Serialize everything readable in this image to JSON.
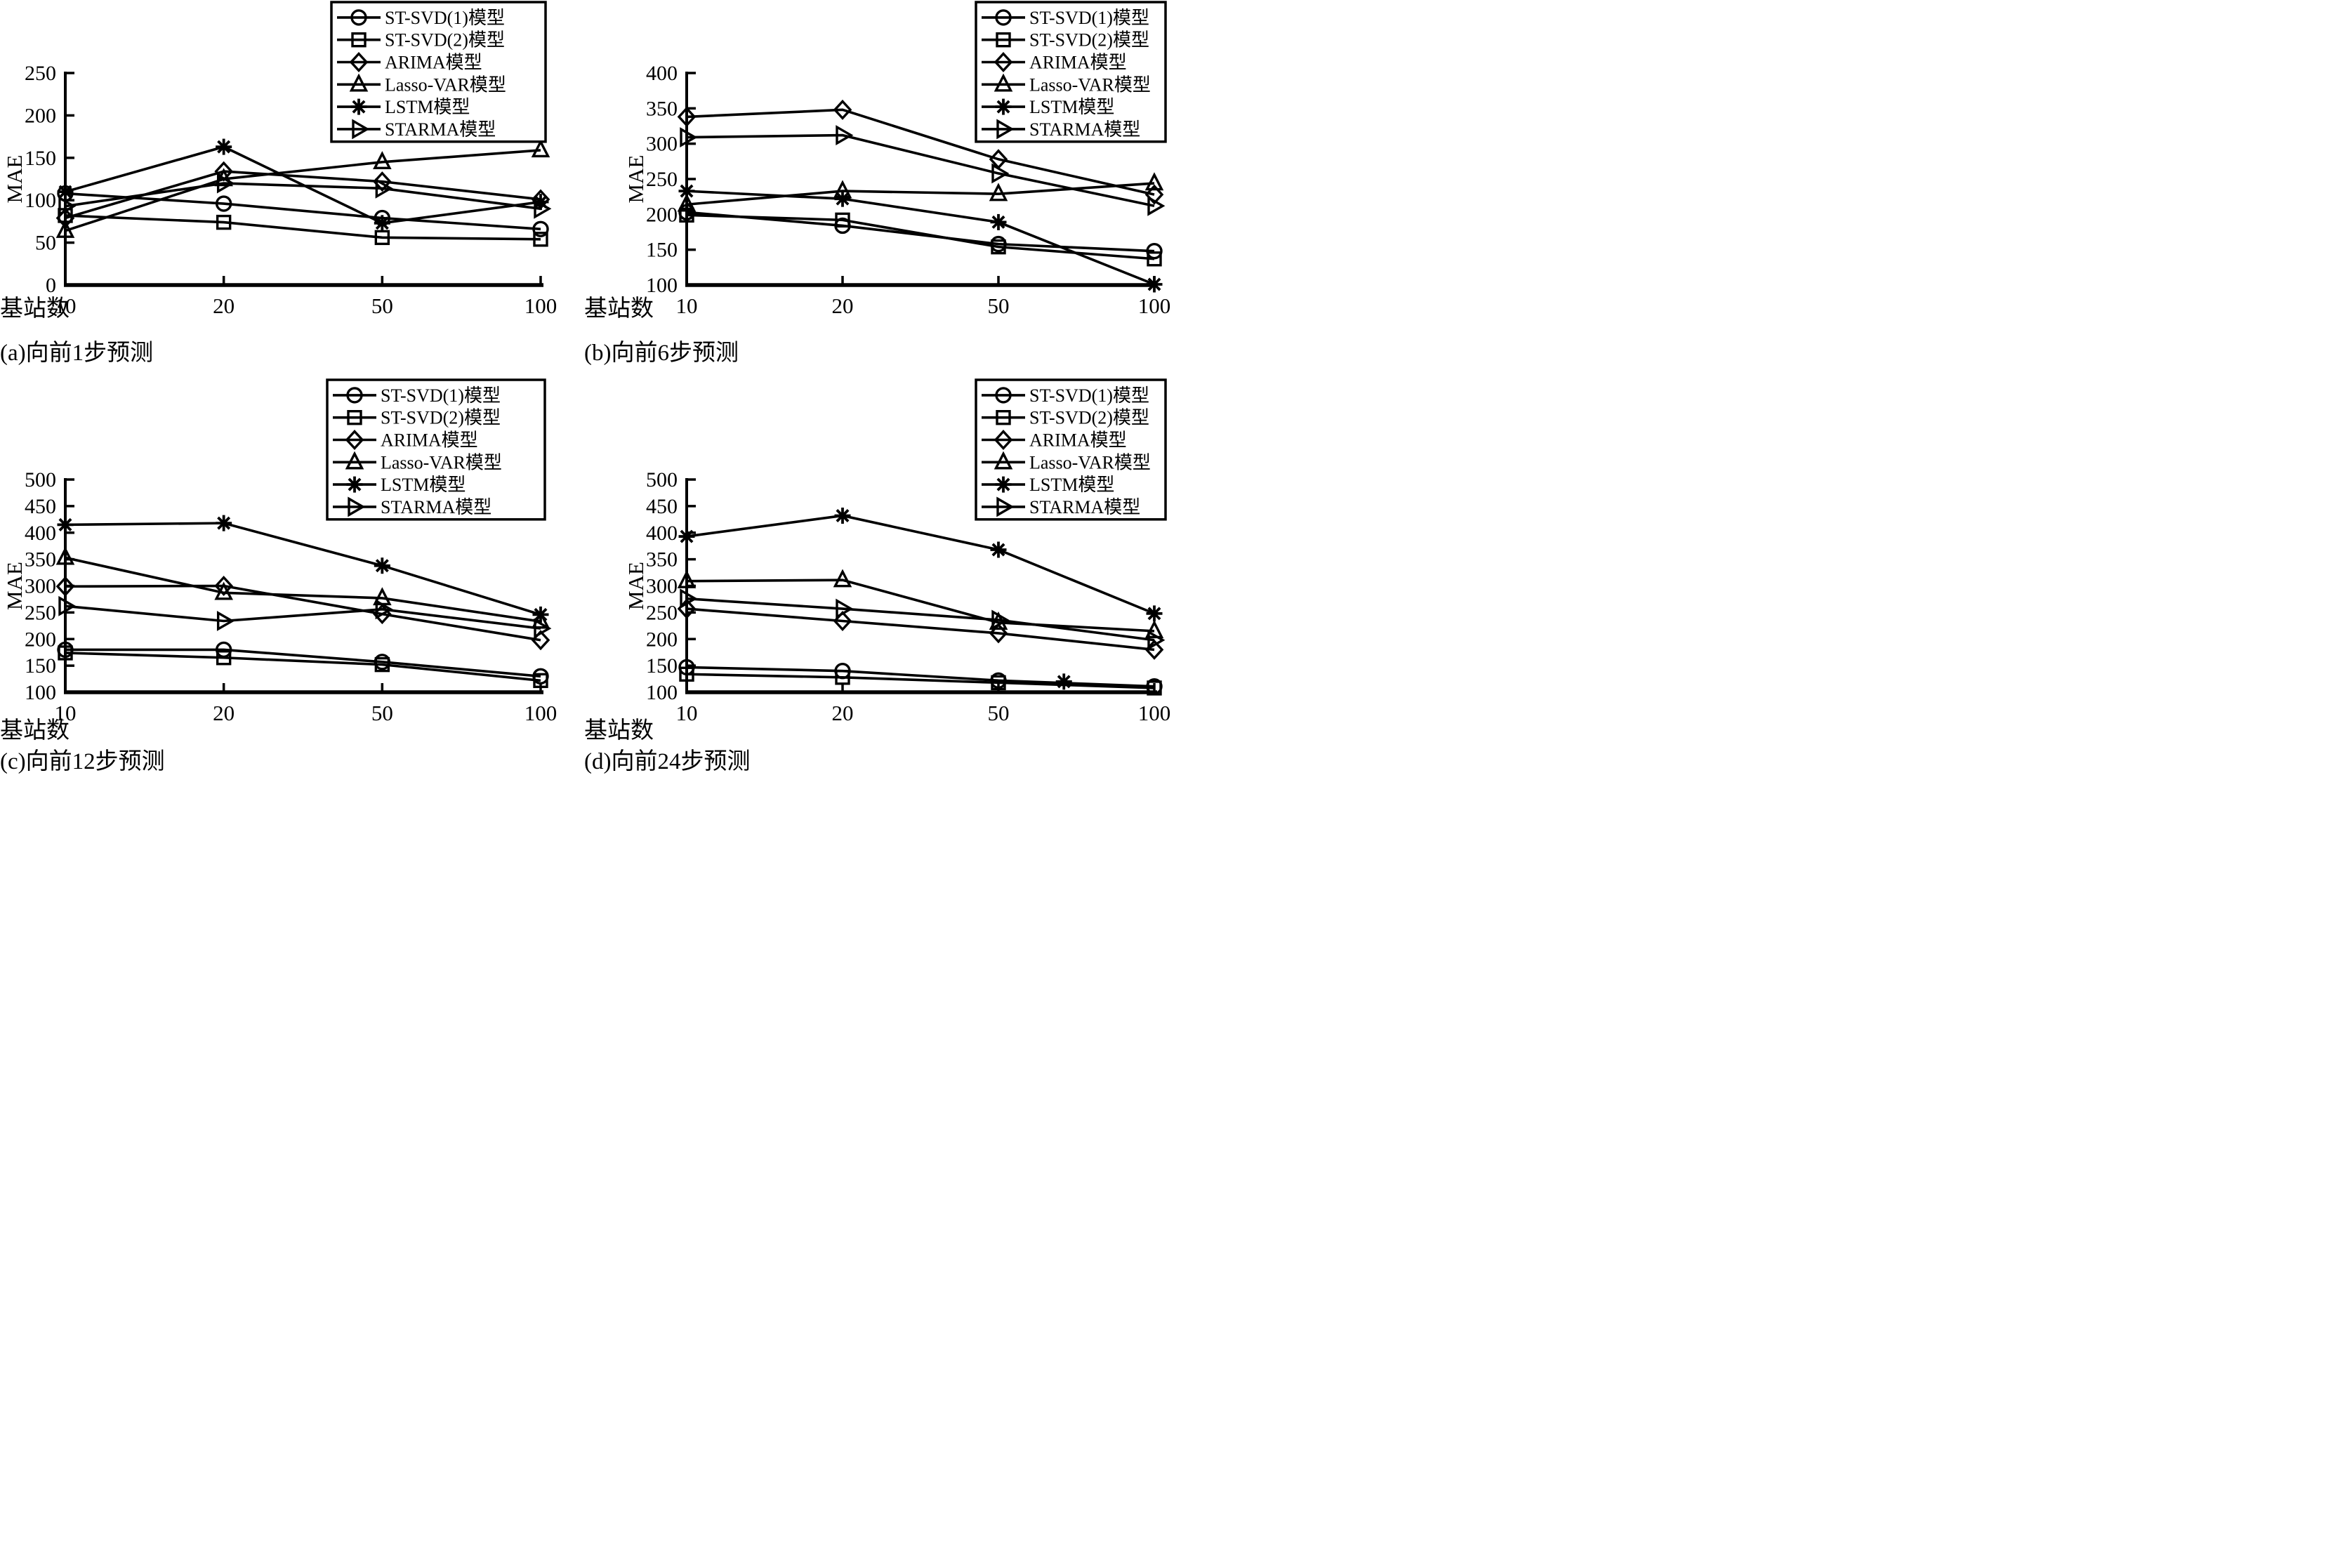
{
  "figure": {
    "background_color": "#ffffff",
    "line_color": "#000000",
    "xlabel": "基站数",
    "ylabel": "MAE",
    "x_tick_labels": [
      "10",
      "20",
      "50",
      "100"
    ],
    "legend_entries": [
      {
        "label": "ST-SVD(1)模型",
        "marker": "circle-marker"
      },
      {
        "label": "ST-SVD(2)模型",
        "marker": "square-marker"
      },
      {
        "label": "ARIMA模型",
        "marker": "diamond-marker"
      },
      {
        "label": "Lasso-VAR模型",
        "marker": "triangle-up-marker"
      },
      {
        "label": "LSTM模型",
        "marker": "asterisk-marker"
      },
      {
        "label": "STARMA模型",
        "marker": "triangle-right-marker"
      }
    ]
  },
  "chart_data": [
    {
      "type": "line",
      "title": "(a)向前1步预测",
      "xlabel": "基站数",
      "ylabel": "MAE",
      "x": [
        10,
        20,
        50,
        100
      ],
      "x_scale": "categorical-equal-spacing",
      "ylim": [
        0,
        250
      ],
      "yticks": [
        0,
        50,
        100,
        150,
        200,
        250
      ],
      "grid": false,
      "legend_position": "top-right",
      "series": [
        {
          "name": "ST-SVD(1)模型",
          "marker": "circle",
          "values": [
            108,
            96,
            79,
            66
          ]
        },
        {
          "name": "ST-SVD(2)模型",
          "marker": "square",
          "values": [
            82,
            74,
            56,
            54
          ]
        },
        {
          "name": "ARIMA模型",
          "marker": "diamond",
          "values": [
            79,
            134,
            122,
            101
          ]
        },
        {
          "name": "Lasso-VAR模型",
          "marker": "triangle-up",
          "values": [
            64,
            125,
            145,
            159
          ]
        },
        {
          "name": "LSTM模型",
          "marker": "asterisk",
          "values": [
            110,
            163,
            73,
            98
          ]
        },
        {
          "name": "STARMA模型",
          "marker": "triangle-right",
          "values": [
            93,
            120,
            114,
            90
          ]
        }
      ]
    },
    {
      "type": "line",
      "title": "(b)向前6步预测",
      "xlabel": "基站数",
      "ylabel": "MAE",
      "x": [
        10,
        20,
        50,
        100
      ],
      "x_scale": "categorical-equal-spacing",
      "ylim": [
        100,
        400
      ],
      "yticks": [
        100,
        150,
        200,
        250,
        300,
        350,
        400
      ],
      "grid": false,
      "legend_position": "top-right",
      "series": [
        {
          "name": "ST-SVD(1)模型",
          "marker": "circle",
          "values": [
            203,
            184,
            158,
            148
          ]
        },
        {
          "name": "ST-SVD(2)模型",
          "marker": "square",
          "values": [
            199,
            192,
            154,
            137
          ]
        },
        {
          "name": "ARIMA模型",
          "marker": "diamond",
          "values": [
            338,
            348,
            278,
            228
          ]
        },
        {
          "name": "Lasso-VAR模型",
          "marker": "triangle-up",
          "values": [
            214,
            233,
            229,
            244
          ]
        },
        {
          "name": "LSTM模型",
          "marker": "asterisk",
          "values": [
            233,
            222,
            189,
            101
          ]
        },
        {
          "name": "STARMA模型",
          "marker": "triangle-right",
          "values": [
            309,
            312,
            258,
            212
          ]
        }
      ]
    },
    {
      "type": "line",
      "title": "(c)向前12步预测",
      "xlabel": "基站数",
      "ylabel": "MAE",
      "x": [
        10,
        20,
        50,
        100
      ],
      "x_scale": "categorical-equal-spacing",
      "ylim": [
        100,
        500
      ],
      "yticks": [
        100,
        150,
        200,
        250,
        300,
        350,
        400,
        450,
        500
      ],
      "grid": false,
      "legend_position": "top-right",
      "series": [
        {
          "name": "ST-SVD(1)模型",
          "marker": "circle",
          "values": [
            180,
            180,
            157,
            130
          ]
        },
        {
          "name": "ST-SVD(2)模型",
          "marker": "square",
          "values": [
            174,
            165,
            152,
            122
          ]
        },
        {
          "name": "ARIMA模型",
          "marker": "diamond",
          "values": [
            299,
            300,
            247,
            198
          ]
        },
        {
          "name": "Lasso-VAR模型",
          "marker": "triangle-up",
          "values": [
            353,
            287,
            277,
            233
          ]
        },
        {
          "name": "LSTM模型",
          "marker": "asterisk",
          "values": [
            415,
            418,
            338,
            246
          ]
        },
        {
          "name": "STARMA模型",
          "marker": "triangle-right",
          "values": [
            262,
            234,
            256,
            220
          ]
        }
      ]
    },
    {
      "type": "line",
      "title": "(d)向前24步预测",
      "xlabel": "基站数",
      "ylabel": "MAE",
      "x": [
        10,
        20,
        50,
        100
      ],
      "x_scale": "categorical-equal-spacing",
      "ylim": [
        100,
        500
      ],
      "yticks": [
        100,
        150,
        200,
        250,
        300,
        350,
        400,
        450,
        500
      ],
      "grid": false,
      "legend_position": "top-right",
      "series": [
        {
          "name": "ST-SVD(1)模型",
          "marker": "circle",
          "values": [
            147,
            140,
            122,
            111
          ]
        },
        {
          "name": "ST-SVD(2)模型",
          "marker": "square",
          "values": [
            134,
            128,
            118,
            108
          ]
        },
        {
          "name": "ARIMA模型",
          "marker": "diamond",
          "values": [
            257,
            234,
            211,
            180
          ]
        },
        {
          "name": "Lasso-VAR模型",
          "marker": "triangle-up",
          "values": [
            309,
            311,
            231,
            215
          ]
        },
        {
          "name": "LSTM模型",
          "marker": "asterisk",
          "values": [
            393,
            432,
            368,
            248
          ]
        },
        {
          "name": "STARMA模型",
          "marker": "triangle-right",
          "values": [
            276,
            257,
            236,
            198
          ]
        }
      ],
      "stray_markers": [
        {
          "marker": "asterisk",
          "x_index": 2.42,
          "value": 120
        }
      ]
    }
  ]
}
